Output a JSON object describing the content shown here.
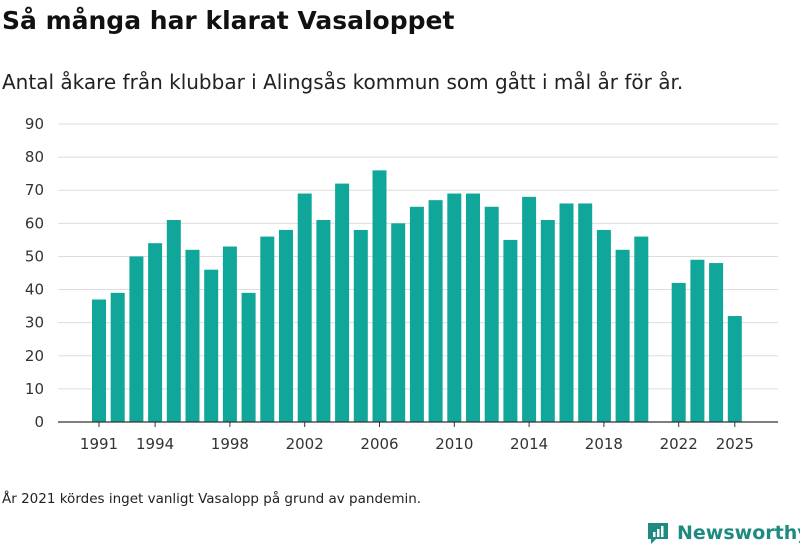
{
  "title": "Så många har klarat Vasaloppet",
  "subtitle": "Antal åkare från klubbar i Alingsås kommun som gått i mål år för år.",
  "footnote": "År 2021 kördes inget vanligt Vasalopp på grund av pandemin.",
  "brand": {
    "name": "Newsworthy",
    "icon": "newsworthy-logo-icon"
  },
  "colors": {
    "bar": "#10a79a",
    "grid": "#dddddd",
    "axis": "#333333",
    "brand": "#1f8a80"
  },
  "chart_data": {
    "type": "bar",
    "title": "",
    "xlabel": "",
    "ylabel": "",
    "ylim": [
      0,
      90
    ],
    "yticks": [
      0,
      10,
      20,
      30,
      40,
      50,
      60,
      70,
      80,
      90
    ],
    "xticks": [
      1991,
      1994,
      1998,
      2002,
      2006,
      2010,
      2014,
      2018,
      2022,
      2025
    ],
    "grid": true,
    "categories": [
      1991,
      1992,
      1993,
      1994,
      1995,
      1996,
      1997,
      1998,
      1999,
      2000,
      2001,
      2002,
      2003,
      2004,
      2005,
      2006,
      2007,
      2008,
      2009,
      2010,
      2011,
      2012,
      2013,
      2014,
      2015,
      2016,
      2017,
      2018,
      2019,
      2020,
      2021,
      2022,
      2023,
      2024,
      2025
    ],
    "values": [
      37,
      39,
      50,
      54,
      61,
      52,
      46,
      53,
      39,
      56,
      58,
      69,
      61,
      72,
      58,
      76,
      60,
      65,
      67,
      69,
      69,
      65,
      55,
      68,
      61,
      66,
      66,
      58,
      52,
      56,
      null,
      42,
      49,
      48,
      32
    ]
  }
}
